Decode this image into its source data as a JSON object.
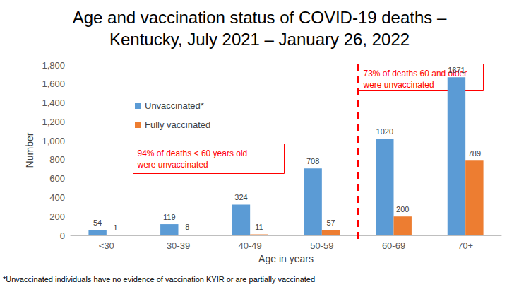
{
  "chart_data": {
    "type": "bar",
    "title": "Age and vaccination status of COVID-19 deaths –\nKentucky, July 2021 – January 26, 2022",
    "x_label": "Age in years",
    "y_label": "Number",
    "categories": [
      "<30",
      "30-39",
      "40-49",
      "50-59",
      "60-69",
      "70+"
    ],
    "series": [
      {
        "name": "Unvaccinated*",
        "color": "#5b9bd5",
        "values": [
          54,
          119,
          324,
          708,
          1020,
          1671
        ]
      },
      {
        "name": "Fully vaccinated",
        "color": "#ed7d31",
        "values": [
          1,
          8,
          11,
          57,
          200,
          789
        ]
      }
    ],
    "ylim": [
      0,
      1800
    ],
    "yticks": [
      0,
      200,
      400,
      600,
      800,
      1000,
      1200,
      1400,
      1600,
      1800
    ],
    "grid": false,
    "legend": "top-left",
    "data_labels": true,
    "annotations": [
      {
        "text": "94% of deaths < 60 years old\nwere unvaccinated"
      },
      {
        "text": "73% of deaths 60 and older\nwere unvaccinated"
      }
    ],
    "footnote": "*Unvaccinated individuals have no evidence of vaccination KYIR or are partially vaccinated"
  }
}
